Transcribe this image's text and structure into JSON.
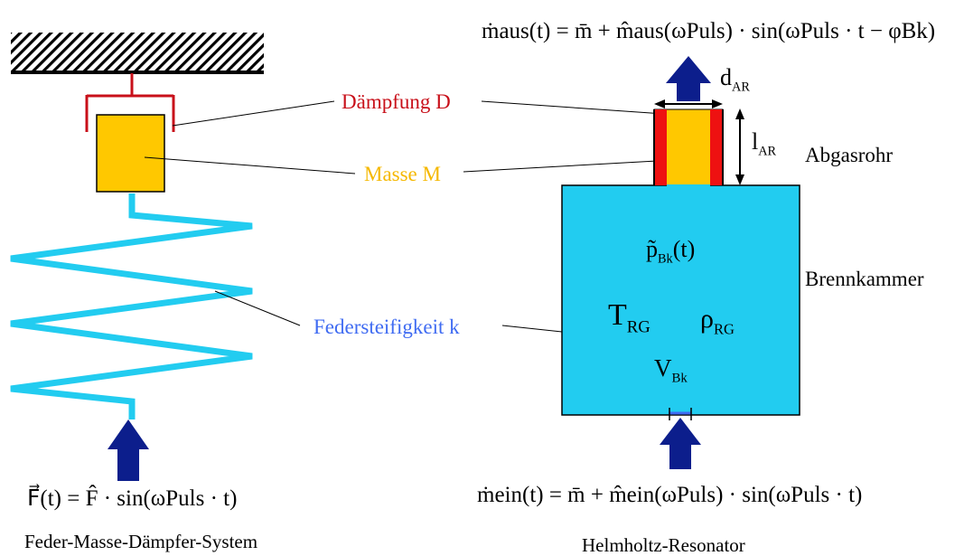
{
  "labels": {
    "daempfung": "Dämpfung D",
    "masse": "Masse M",
    "federsteifigkeit": "Federsteifigkeit k",
    "abgasrohr": "Abgasrohr",
    "brennkammer": "Brennkammer",
    "left_caption": "Feder-Masse-Dämpfer-System",
    "right_caption": "Helmholtz-Resonator"
  },
  "symbols": {
    "d_main": "d",
    "d_sub": "AR",
    "l_main": "l",
    "l_sub": "AR",
    "p_main": "p̃",
    "p_sub": "Bk",
    "p_arg": "(t)",
    "T_main": "T",
    "T_sub": "RG",
    "rho_main": "ρ",
    "rho_sub": "RG",
    "V_main": "V",
    "V_sub": "Bk"
  },
  "equations": {
    "force": "F⃗(t) = F̂ · sin(ωPuls · t)",
    "m_aus": "ṁaus(t) = m̄ + m̂aus(ωPuls) · sin(ωPuls · t − φBk)",
    "m_ein": "ṁein(t) = m̄ + m̂ein(ωPuls) · sin(ωPuls · t)"
  },
  "colors": {
    "damper": "#c8101a",
    "mass": "#ffc800",
    "spring": "#22ccf0",
    "chamber": "#22ccf0",
    "arrow": "#0c1e8c",
    "pipe_wall": "#ee1111",
    "label_blue": "#3f6bf2",
    "label_orange": "#f5b800"
  }
}
